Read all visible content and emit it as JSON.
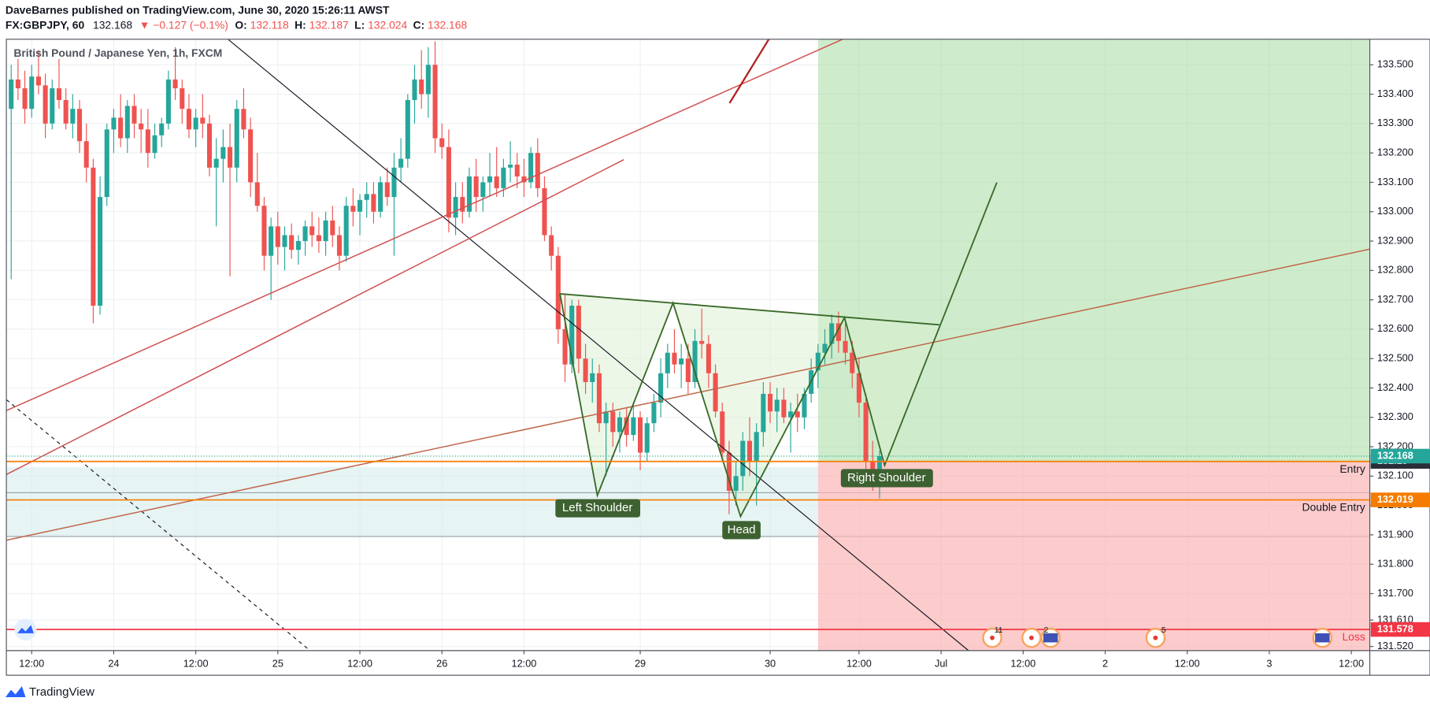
{
  "header": {
    "publisher": "DaveBarnes published on TradingView.com, June 30, 2020 15:26:11 AWST",
    "symbol": "FX:GBPJPY, 60",
    "last": "132.168",
    "change": "▼ −0.127 (−0.1%)",
    "o_label": "O:",
    "open": "132.118",
    "h_label": "H:",
    "high": "132.187",
    "l_label": "L:",
    "low": "132.024",
    "c_label": "C:",
    "close": "132.168"
  },
  "chart_data": {
    "type": "candlestick",
    "title": "British Pound / Japanese Yen, 1h, FXCM",
    "up_color": "#26a69a",
    "down_color": "#ef5350",
    "ohlc": [
      [
        133.35,
        133.5,
        132.77,
        133.45
      ],
      [
        133.45,
        133.52,
        133.38,
        133.42
      ],
      [
        133.42,
        133.48,
        133.3,
        133.35
      ],
      [
        133.35,
        133.5,
        133.32,
        133.46
      ],
      [
        133.46,
        133.55,
        133.4,
        133.43
      ],
      [
        133.43,
        133.47,
        133.25,
        133.3
      ],
      [
        133.3,
        133.45,
        133.28,
        133.42
      ],
      [
        133.42,
        133.52,
        133.35,
        133.38
      ],
      [
        133.38,
        133.42,
        133.28,
        133.3
      ],
      [
        133.3,
        133.4,
        133.25,
        133.35
      ],
      [
        133.35,
        133.38,
        133.2,
        133.24
      ],
      [
        133.24,
        133.3,
        133.1,
        133.15
      ],
      [
        133.15,
        133.18,
        132.62,
        132.68
      ],
      [
        132.68,
        133.12,
        132.65,
        133.05
      ],
      [
        133.05,
        133.3,
        133.02,
        133.28
      ],
      [
        133.28,
        133.35,
        133.2,
        133.32
      ],
      [
        133.32,
        133.4,
        133.22,
        133.25
      ],
      [
        133.25,
        133.38,
        133.2,
        133.36
      ],
      [
        133.36,
        133.4,
        133.25,
        133.3
      ],
      [
        133.3,
        133.35,
        133.2,
        133.28
      ],
      [
        133.28,
        133.35,
        133.15,
        133.2
      ],
      [
        133.2,
        133.3,
        133.18,
        133.26
      ],
      [
        133.26,
        133.32,
        133.22,
        133.3
      ],
      [
        133.3,
        133.48,
        133.28,
        133.45
      ],
      [
        133.45,
        133.56,
        133.38,
        133.42
      ],
      [
        133.42,
        133.45,
        133.3,
        133.35
      ],
      [
        133.35,
        133.4,
        133.25,
        133.28
      ],
      [
        133.28,
        133.35,
        133.22,
        133.32
      ],
      [
        133.32,
        133.4,
        133.25,
        133.3
      ],
      [
        133.3,
        133.33,
        133.12,
        133.15
      ],
      [
        133.15,
        133.25,
        132.95,
        133.18
      ],
      [
        133.18,
        133.28,
        133.1,
        133.22
      ],
      [
        133.22,
        133.3,
        132.78,
        133.15
      ],
      [
        133.15,
        133.38,
        133.1,
        133.35
      ],
      [
        133.35,
        133.42,
        133.25,
        133.28
      ],
      [
        133.28,
        133.32,
        133.05,
        133.1
      ],
      [
        133.1,
        133.2,
        133.0,
        133.02
      ],
      [
        133.02,
        133.05,
        132.8,
        132.85
      ],
      [
        132.85,
        132.98,
        132.7,
        132.95
      ],
      [
        132.95,
        133.0,
        132.82,
        132.88
      ],
      [
        132.88,
        132.95,
        132.8,
        132.92
      ],
      [
        132.92,
        132.96,
        132.84,
        132.87
      ],
      [
        132.87,
        132.92,
        132.82,
        132.9
      ],
      [
        132.9,
        132.97,
        132.85,
        132.95
      ],
      [
        132.95,
        133.0,
        132.88,
        132.92
      ],
      [
        132.92,
        132.98,
        132.86,
        132.9
      ],
      [
        132.9,
        133.0,
        132.85,
        132.97
      ],
      [
        132.97,
        133.02,
        132.88,
        132.92
      ],
      [
        132.92,
        132.95,
        132.8,
        132.85
      ],
      [
        132.85,
        133.05,
        132.83,
        133.02
      ],
      [
        133.02,
        133.08,
        132.95,
        133.0
      ],
      [
        133.0,
        133.06,
        132.92,
        133.04
      ],
      [
        133.04,
        133.1,
        132.98,
        133.06
      ],
      [
        133.06,
        133.1,
        132.96,
        133.0
      ],
      [
        133.0,
        133.12,
        132.98,
        133.1
      ],
      [
        133.1,
        133.15,
        133.02,
        133.05
      ],
      [
        133.05,
        133.2,
        132.85,
        133.15
      ],
      [
        133.15,
        133.25,
        133.1,
        133.18
      ],
      [
        133.18,
        133.4,
        133.15,
        133.38
      ],
      [
        133.38,
        133.5,
        133.3,
        133.45
      ],
      [
        133.45,
        133.55,
        133.35,
        133.4
      ],
      [
        133.4,
        133.56,
        133.32,
        133.5
      ],
      [
        133.5,
        133.58,
        133.2,
        133.25
      ],
      [
        133.25,
        133.3,
        133.18,
        133.22
      ],
      [
        133.22,
        133.28,
        132.93,
        132.98
      ],
      [
        132.98,
        133.1,
        132.92,
        133.05
      ],
      [
        133.05,
        133.1,
        132.96,
        133.0
      ],
      [
        133.0,
        133.15,
        132.98,
        133.12
      ],
      [
        133.12,
        133.18,
        133.0,
        133.05
      ],
      [
        133.05,
        133.12,
        133.0,
        133.1
      ],
      [
        133.1,
        133.2,
        133.05,
        133.12
      ],
      [
        133.12,
        133.22,
        133.05,
        133.08
      ],
      [
        133.08,
        133.18,
        133.05,
        133.15
      ],
      [
        133.15,
        133.24,
        133.1,
        133.16
      ],
      [
        133.16,
        133.2,
        133.08,
        133.12
      ],
      [
        133.12,
        133.18,
        133.05,
        133.1
      ],
      [
        133.1,
        133.22,
        133.08,
        133.2
      ],
      [
        133.2,
        133.25,
        133.05,
        133.08
      ],
      [
        133.08,
        133.12,
        132.9,
        132.92
      ],
      [
        132.92,
        132.95,
        132.8,
        132.85
      ],
      [
        132.85,
        132.88,
        132.55,
        132.6
      ],
      [
        132.6,
        132.72,
        132.42,
        132.48
      ],
      [
        132.48,
        132.7,
        132.45,
        132.68
      ],
      [
        132.68,
        132.7,
        132.45,
        132.5
      ],
      [
        132.5,
        132.55,
        132.38,
        132.42
      ],
      [
        132.42,
        132.5,
        132.35,
        132.45
      ],
      [
        132.45,
        132.48,
        132.25,
        132.28
      ],
      [
        132.28,
        132.35,
        132.1,
        132.32
      ],
      [
        132.32,
        132.35,
        132.2,
        132.25
      ],
      [
        132.25,
        132.32,
        132.18,
        132.3
      ],
      [
        132.3,
        132.33,
        132.2,
        132.24
      ],
      [
        132.24,
        132.35,
        132.22,
        132.3
      ],
      [
        132.3,
        132.32,
        132.12,
        132.18
      ],
      [
        132.18,
        132.3,
        132.15,
        132.28
      ],
      [
        132.28,
        132.38,
        132.25,
        132.35
      ],
      [
        132.35,
        132.5,
        132.3,
        132.45
      ],
      [
        132.45,
        132.55,
        132.4,
        132.52
      ],
      [
        132.52,
        132.6,
        132.45,
        132.48
      ],
      [
        132.48,
        132.55,
        132.4,
        132.5
      ],
      [
        132.5,
        132.55,
        132.38,
        132.42
      ],
      [
        132.42,
        132.6,
        132.4,
        132.56
      ],
      [
        132.56,
        132.67,
        132.5,
        132.55
      ],
      [
        132.55,
        132.58,
        132.4,
        132.45
      ],
      [
        132.45,
        132.48,
        132.3,
        132.32
      ],
      [
        132.32,
        132.35,
        132.15,
        132.18
      ],
      [
        132.18,
        132.22,
        131.97,
        132.05
      ],
      [
        132.05,
        132.15,
        132.0,
        132.1
      ],
      [
        132.1,
        132.25,
        132.05,
        132.22
      ],
      [
        132.22,
        132.3,
        132.1,
        132.15
      ],
      [
        132.15,
        132.28,
        132.0,
        132.25
      ],
      [
        132.25,
        132.42,
        132.2,
        132.38
      ],
      [
        132.38,
        132.42,
        132.28,
        132.32
      ],
      [
        132.32,
        132.4,
        132.25,
        132.36
      ],
      [
        132.36,
        132.4,
        132.28,
        132.3
      ],
      [
        132.3,
        132.35,
        132.18,
        132.32
      ],
      [
        132.32,
        132.38,
        132.25,
        132.3
      ],
      [
        132.3,
        132.4,
        132.26,
        132.38
      ],
      [
        132.38,
        132.5,
        132.35,
        132.46
      ],
      [
        132.46,
        132.55,
        132.4,
        132.52
      ],
      [
        132.52,
        132.6,
        132.48,
        132.55
      ],
      [
        132.55,
        132.65,
        132.5,
        132.62
      ],
      [
        132.62,
        132.66,
        132.52,
        132.56
      ],
      [
        132.56,
        132.62,
        132.48,
        132.52
      ],
      [
        132.52,
        132.56,
        132.4,
        132.45
      ],
      [
        132.45,
        132.5,
        132.3,
        132.35
      ],
      [
        132.35,
        132.38,
        132.12,
        132.15
      ],
      [
        132.15,
        132.22,
        132.05,
        132.118
      ],
      [
        132.118,
        132.187,
        132.024,
        132.168
      ]
    ],
    "xlim": [
      -0.7,
      198.7
    ],
    "xticks": [
      {
        "value": 3,
        "label": "12:00"
      },
      {
        "value": 15,
        "label": "24"
      },
      {
        "value": 27,
        "label": "12:00"
      },
      {
        "value": 39,
        "label": "25"
      },
      {
        "value": 51,
        "label": "12:00"
      },
      {
        "value": 63,
        "label": "26"
      },
      {
        "value": 75,
        "label": "12:00"
      },
      {
        "value": 92,
        "label": "29"
      },
      {
        "value": 111,
        "label": "30"
      },
      {
        "value": 124,
        "label": "12:00"
      },
      {
        "value": 136,
        "label": "Jul"
      },
      {
        "value": 148,
        "label": "12:00"
      },
      {
        "value": 160,
        "label": "2"
      },
      {
        "value": 172,
        "label": "12:00"
      },
      {
        "value": 184,
        "label": "3"
      },
      {
        "value": 196,
        "label": "12:00"
      }
    ],
    "ylim": [
      131.506,
      133.587
    ],
    "yticks": [
      {
        "value": 133.5,
        "label": "133.500"
      },
      {
        "value": 133.4,
        "label": "133.400"
      },
      {
        "value": 133.3,
        "label": "133.300"
      },
      {
        "value": 133.2,
        "label": "133.200"
      },
      {
        "value": 133.1,
        "label": "133.100"
      },
      {
        "value": 133,
        "label": "133.000"
      },
      {
        "value": 132.9,
        "label": "132.900"
      },
      {
        "value": 132.8,
        "label": "132.800"
      },
      {
        "value": 132.7,
        "label": "132.700"
      },
      {
        "value": 132.6,
        "label": "132.600"
      },
      {
        "value": 132.5,
        "label": "132.500"
      },
      {
        "value": 132.4,
        "label": "132.400"
      },
      {
        "value": 132.3,
        "label": "132.300"
      },
      {
        "value": 132.2,
        "label": "132.200"
      },
      {
        "value": 132.1,
        "label": "132.100"
      },
      {
        "value": 132,
        "label": "132.000"
      },
      {
        "value": 131.9,
        "label": "131.900"
      },
      {
        "value": 131.8,
        "label": "131.800"
      },
      {
        "value": 131.7,
        "label": "131.700"
      },
      {
        "value": 131.61,
        "label": "131.610"
      },
      {
        "value": 131.52,
        "label": "131.520"
      }
    ],
    "grid": true,
    "levels": [
      {
        "name": "Entry",
        "value": 132.15,
        "color": "#f57c00",
        "tag_color": "#2a2e39"
      },
      {
        "name": "Double Entry",
        "value": 132.019,
        "color": "#f57c00",
        "tag_color": "#f57c00"
      },
      {
        "name": "Loss",
        "value": 131.578,
        "color": "#f23645",
        "tag_color": "#f23645"
      }
    ],
    "last_price": {
      "value": 132.168,
      "color": "#26a69a"
    },
    "annotations": [
      "Left Shoulder",
      "Head",
      "Right Shoulder"
    ],
    "events": [
      "11",
      "2",
      "5"
    ]
  },
  "footer": {
    "brand": "TradingView"
  }
}
